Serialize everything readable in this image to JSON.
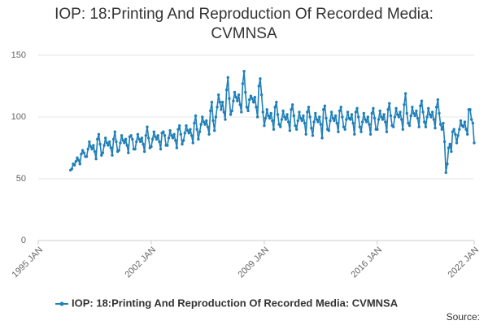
{
  "chart_data": {
    "type": "line",
    "title": "IOP: 18:Printing And Reproduction Of Recorded Media: CVMNSA",
    "source": "Source:",
    "color": "#1f7fb8",
    "grid": true,
    "legend": "bottom",
    "xlim": [
      "1995-01",
      "2022-01"
    ],
    "xticks": [
      {
        "value": "1995-01",
        "label": "1995 JAN"
      },
      {
        "value": "2002-01",
        "label": "2002 JAN"
      },
      {
        "value": "2009-01",
        "label": "2009 JAN"
      },
      {
        "value": "2016-01",
        "label": "2016 JAN"
      },
      {
        "value": "2022-01",
        "label": "2022 JAN"
      }
    ],
    "ylim": [
      0,
      150
    ],
    "yticks": [
      0,
      50,
      100,
      150
    ],
    "series": [
      {
        "name": "IOP: 18:Printing And Reproduction Of Recorded Media: CVMNSA",
        "color": "#1f7fb8",
        "x": [
          "1997-01",
          "1997-02",
          "1997-03",
          "1997-04",
          "1997-05",
          "1997-06",
          "1997-07",
          "1997-08",
          "1997-09",
          "1997-10",
          "1997-11",
          "1997-12",
          "1998-01",
          "1998-02",
          "1998-03",
          "1998-04",
          "1998-05",
          "1998-06",
          "1998-07",
          "1998-08",
          "1998-09",
          "1998-10",
          "1998-11",
          "1998-12",
          "1999-01",
          "1999-02",
          "1999-03",
          "1999-04",
          "1999-05",
          "1999-06",
          "1999-07",
          "1999-08",
          "1999-09",
          "1999-10",
          "1999-11",
          "1999-12",
          "2000-01",
          "2000-02",
          "2000-03",
          "2000-04",
          "2000-05",
          "2000-06",
          "2000-07",
          "2000-08",
          "2000-09",
          "2000-10",
          "2000-11",
          "2000-12",
          "2001-01",
          "2001-02",
          "2001-03",
          "2001-04",
          "2001-05",
          "2001-06",
          "2001-07",
          "2001-08",
          "2001-09",
          "2001-10",
          "2001-11",
          "2001-12",
          "2002-01",
          "2002-02",
          "2002-03",
          "2002-04",
          "2002-05",
          "2002-06",
          "2002-07",
          "2002-08",
          "2002-09",
          "2002-10",
          "2002-11",
          "2002-12",
          "2003-01",
          "2003-02",
          "2003-03",
          "2003-04",
          "2003-05",
          "2003-06",
          "2003-07",
          "2003-08",
          "2003-09",
          "2003-10",
          "2003-11",
          "2003-12",
          "2004-01",
          "2004-02",
          "2004-03",
          "2004-04",
          "2004-05",
          "2004-06",
          "2004-07",
          "2004-08",
          "2004-09",
          "2004-10",
          "2004-11",
          "2004-12",
          "2005-01",
          "2005-02",
          "2005-03",
          "2005-04",
          "2005-05",
          "2005-06",
          "2005-07",
          "2005-08",
          "2005-09",
          "2005-10",
          "2005-11",
          "2005-12",
          "2006-01",
          "2006-02",
          "2006-03",
          "2006-04",
          "2006-05",
          "2006-06",
          "2006-07",
          "2006-08",
          "2006-09",
          "2006-10",
          "2006-11",
          "2006-12",
          "2007-01",
          "2007-02",
          "2007-03",
          "2007-04",
          "2007-05",
          "2007-06",
          "2007-07",
          "2007-08",
          "2007-09",
          "2007-10",
          "2007-11",
          "2007-12",
          "2008-01",
          "2008-02",
          "2008-03",
          "2008-04",
          "2008-05",
          "2008-06",
          "2008-07",
          "2008-08",
          "2008-09",
          "2008-10",
          "2008-11",
          "2008-12",
          "2009-01",
          "2009-02",
          "2009-03",
          "2009-04",
          "2009-05",
          "2009-06",
          "2009-07",
          "2009-08",
          "2009-09",
          "2009-10",
          "2009-11",
          "2009-12",
          "2010-01",
          "2010-02",
          "2010-03",
          "2010-04",
          "2010-05",
          "2010-06",
          "2010-07",
          "2010-08",
          "2010-09",
          "2010-10",
          "2010-11",
          "2010-12",
          "2011-01",
          "2011-02",
          "2011-03",
          "2011-04",
          "2011-05",
          "2011-06",
          "2011-07",
          "2011-08",
          "2011-09",
          "2011-10",
          "2011-11",
          "2011-12",
          "2012-01",
          "2012-02",
          "2012-03",
          "2012-04",
          "2012-05",
          "2012-06",
          "2012-07",
          "2012-08",
          "2012-09",
          "2012-10",
          "2012-11",
          "2012-12",
          "2013-01",
          "2013-02",
          "2013-03",
          "2013-04",
          "2013-05",
          "2013-06",
          "2013-07",
          "2013-08",
          "2013-09",
          "2013-10",
          "2013-11",
          "2013-12",
          "2014-01",
          "2014-02",
          "2014-03",
          "2014-04",
          "2014-05",
          "2014-06",
          "2014-07",
          "2014-08",
          "2014-09",
          "2014-10",
          "2014-11",
          "2014-12",
          "2015-01",
          "2015-02",
          "2015-03",
          "2015-04",
          "2015-05",
          "2015-06",
          "2015-07",
          "2015-08",
          "2015-09",
          "2015-10",
          "2015-11",
          "2015-12",
          "2016-01",
          "2016-02",
          "2016-03",
          "2016-04",
          "2016-05",
          "2016-06",
          "2016-07",
          "2016-08",
          "2016-09",
          "2016-10",
          "2016-11",
          "2016-12",
          "2017-01",
          "2017-02",
          "2017-03",
          "2017-04",
          "2017-05",
          "2017-06",
          "2017-07",
          "2017-08",
          "2017-09",
          "2017-10",
          "2017-11",
          "2017-12",
          "2018-01",
          "2018-02",
          "2018-03",
          "2018-04",
          "2018-05",
          "2018-06",
          "2018-07",
          "2018-08",
          "2018-09",
          "2018-10",
          "2018-11",
          "2018-12",
          "2019-01",
          "2019-02",
          "2019-03",
          "2019-04",
          "2019-05",
          "2019-06",
          "2019-07",
          "2019-08",
          "2019-09",
          "2019-10",
          "2019-11",
          "2019-12",
          "2020-01",
          "2020-02",
          "2020-03",
          "2020-04",
          "2020-05",
          "2020-06",
          "2020-07",
          "2020-08",
          "2020-09",
          "2020-10",
          "2020-11",
          "2020-12",
          "2021-01",
          "2021-02",
          "2021-03",
          "2021-04",
          "2021-05",
          "2021-06",
          "2021-07",
          "2021-08",
          "2021-09",
          "2021-10",
          "2021-11",
          "2021-12",
          "2022-01"
        ],
        "values": [
          57,
          58,
          62,
          61,
          64,
          67,
          65,
          62,
          70,
          73,
          71,
          68,
          68,
          74,
          80,
          76,
          74,
          77,
          72,
          66,
          82,
          86,
          78,
          69,
          71,
          77,
          83,
          79,
          77,
          80,
          75,
          69,
          82,
          88,
          80,
          72,
          73,
          79,
          85,
          81,
          79,
          82,
          77,
          71,
          84,
          85,
          82,
          74,
          74,
          80,
          86,
          82,
          80,
          83,
          78,
          72,
          85,
          92,
          83,
          75,
          76,
          82,
          88,
          84,
          82,
          85,
          80,
          74,
          87,
          88,
          85,
          77,
          77,
          83,
          89,
          85,
          83,
          86,
          81,
          75,
          90,
          93,
          86,
          78,
          81,
          87,
          93,
          89,
          87,
          90,
          85,
          79,
          95,
          101,
          90,
          82,
          88,
          94,
          100,
          96,
          94,
          97,
          92,
          86,
          105,
          112,
          97,
          89,
          100,
          108,
          118,
          112,
          106,
          112,
          104,
          98,
          122,
          132,
          115,
          102,
          105,
          113,
          120,
          116,
          113,
          118,
          110,
          104,
          127,
          137,
          120,
          108,
          105,
          114,
          117,
          115,
          112,
          116,
          108,
          100,
          125,
          131,
          118,
          104,
          93,
          99,
          106,
          101,
          99,
          103,
          97,
          90,
          108,
          112,
          102,
          94,
          92,
          98,
          105,
          100,
          98,
          102,
          96,
          89,
          106,
          110,
          101,
          93,
          90,
          97,
          104,
          99,
          97,
          101,
          95,
          86,
          104,
          108,
          100,
          91,
          85,
          96,
          103,
          98,
          96,
          100,
          94,
          83,
          106,
          109,
          99,
          90,
          89,
          97,
          104,
          99,
          97,
          101,
          95,
          88,
          105,
          108,
          100,
          92,
          90,
          98,
          104,
          99,
          98,
          102,
          95,
          86,
          104,
          107,
          100,
          92,
          88,
          96,
          103,
          98,
          96,
          100,
          94,
          86,
          103,
          107,
          99,
          90,
          90,
          98,
          105,
          100,
          98,
          102,
          96,
          88,
          106,
          111,
          101,
          93,
          92,
          100,
          107,
          102,
          100,
          104,
          98,
          90,
          110,
          119,
          103,
          95,
          93,
          101,
          108,
          103,
          101,
          105,
          99,
          92,
          109,
          113,
          104,
          96,
          92,
          100,
          107,
          102,
          100,
          104,
          98,
          91,
          108,
          114,
          103,
          94,
          90,
          95,
          80,
          55,
          62,
          75,
          78,
          72,
          88,
          90,
          86,
          79,
          85,
          90,
          97,
          93,
          92,
          96,
          90,
          86,
          106,
          106,
          98,
          95,
          79
        ]
      }
    ]
  }
}
